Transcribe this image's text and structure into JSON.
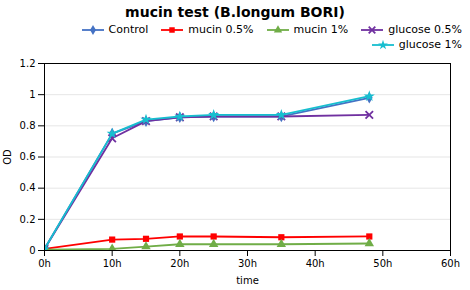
{
  "chart_data": {
    "type": "line",
    "title": "mucin test (B.longum BORI)",
    "xlabel": "time",
    "ylabel": "OD",
    "x": [
      0,
      10,
      15,
      20,
      25,
      35,
      48
    ],
    "series": [
      {
        "name": "Control",
        "color": "#4472C4",
        "marker": "diamond",
        "values": [
          0.01,
          0.75,
          0.83,
          0.855,
          0.86,
          0.86,
          0.98
        ]
      },
      {
        "name": "mucin 0.5%",
        "color": "#FF0000",
        "marker": "square",
        "values": [
          0.01,
          0.07,
          0.075,
          0.09,
          0.09,
          0.085,
          0.09
        ]
      },
      {
        "name": "mucin 1%",
        "color": "#70AD47",
        "marker": "triangle",
        "values": [
          0.005,
          0.01,
          0.025,
          0.04,
          0.04,
          0.04,
          0.045
        ]
      },
      {
        "name": "glucose 0.5%",
        "color": "#7030A0",
        "marker": "x",
        "values": [
          0.01,
          0.72,
          0.83,
          0.855,
          0.86,
          0.86,
          0.87
        ]
      },
      {
        "name": "glucose 1%",
        "color": "#17BECF",
        "marker": "star",
        "values": [
          0.01,
          0.75,
          0.84,
          0.86,
          0.87,
          0.87,
          0.99
        ]
      }
    ],
    "xlim": [
      0,
      60
    ],
    "ylim": [
      0,
      1.2
    ],
    "xticks": [
      {
        "value": 0,
        "label": "0h"
      },
      {
        "value": 10,
        "label": "10h"
      },
      {
        "value": 20,
        "label": "20h"
      },
      {
        "value": 30,
        "label": "30h"
      },
      {
        "value": 40,
        "label": "40h"
      },
      {
        "value": 50,
        "label": "50h"
      },
      {
        "value": 60,
        "label": "60h"
      }
    ],
    "yticks": [
      0,
      0.2,
      0.4,
      0.6,
      0.8,
      1,
      1.2
    ],
    "grid": "y",
    "legend": "upper right"
  }
}
